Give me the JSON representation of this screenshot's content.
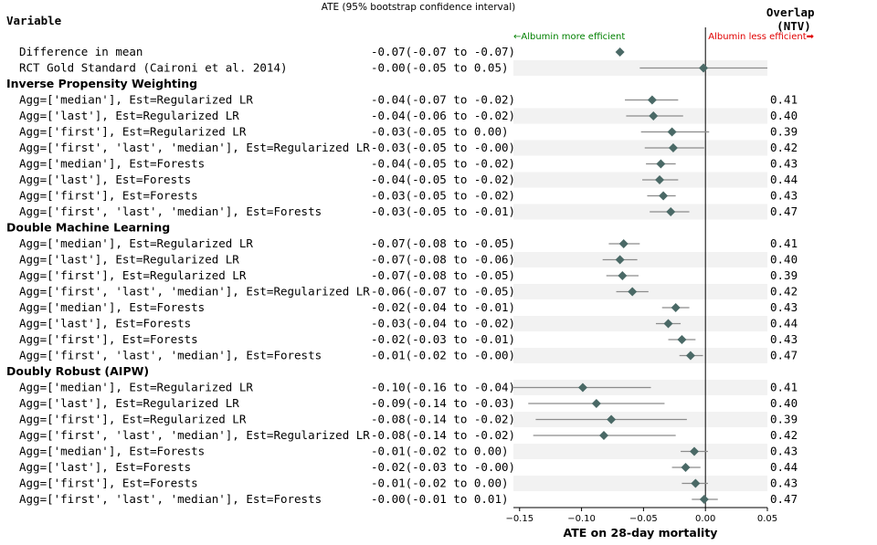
{
  "chart_data": {
    "type": "forest",
    "title": "ATE (95% bootstrap confidence interval)",
    "xlabel": "ATE on 28-day mortality",
    "xlim": [
      -0.155,
      0.05
    ],
    "xticks": [
      "−0.15",
      "−0.10",
      "−0.05",
      "0.00",
      "0.05"
    ],
    "xtick_values": [
      -0.15,
      -0.1,
      -0.05,
      0.0,
      0.05
    ],
    "reference_line": 0.0,
    "headers": {
      "variable": "Variable",
      "overlap": "Overlap\n(NTV)"
    },
    "annotations": {
      "left": "←Albumin more efficient",
      "right": "Albumin less efficient➡",
      "left_color": "#008000",
      "right_color": "#e00000"
    },
    "marker_color": "#4a6966",
    "rows": [
      {
        "kind": "row",
        "label": "Difference in mean",
        "ci_text": "-0.07(-0.07 to -0.07)",
        "ate": -0.069,
        "lo": -0.069,
        "hi": -0.069,
        "overlap": "",
        "shade": false
      },
      {
        "kind": "row",
        "label": "RCT Gold Standard (Caironi et al. 2014)",
        "ci_text": "-0.00(-0.05 to  0.05)",
        "ate": -0.0016,
        "lo": -0.053,
        "hi": 0.05,
        "overlap": "",
        "shade": true
      },
      {
        "kind": "section",
        "label": "Inverse Propensity Weighting"
      },
      {
        "kind": "row",
        "label": "Agg=['median'], Est=Regularized LR",
        "ci_text": "-0.04(-0.07 to -0.02)",
        "ate": -0.043,
        "lo": -0.065,
        "hi": -0.022,
        "overlap": "0.41",
        "shade": false
      },
      {
        "kind": "row",
        "label": "Agg=['last'], Est=Regularized LR",
        "ci_text": "-0.04(-0.06 to -0.02)",
        "ate": -0.042,
        "lo": -0.064,
        "hi": -0.018,
        "overlap": "0.40",
        "shade": true
      },
      {
        "kind": "row",
        "label": "Agg=['first'], Est=Regularized LR",
        "ci_text": "-0.03(-0.05 to  0.00)",
        "ate": -0.027,
        "lo": -0.052,
        "hi": 0.003,
        "overlap": "0.39",
        "shade": false
      },
      {
        "kind": "row",
        "label": "Agg=['first', 'last', 'median'], Est=Regularized LR",
        "ci_text": "-0.03(-0.05 to -0.00)",
        "ate": -0.026,
        "lo": -0.049,
        "hi": -0.001,
        "overlap": "0.42",
        "shade": true
      },
      {
        "kind": "row",
        "label": "Agg=['median'], Est=Forests",
        "ci_text": "-0.04(-0.05 to -0.02)",
        "ate": -0.036,
        "lo": -0.048,
        "hi": -0.024,
        "overlap": "0.43",
        "shade": false
      },
      {
        "kind": "row",
        "label": "Agg=['last'], Est=Forests",
        "ci_text": "-0.04(-0.05 to -0.02)",
        "ate": -0.037,
        "lo": -0.051,
        "hi": -0.022,
        "overlap": "0.44",
        "shade": true
      },
      {
        "kind": "row",
        "label": "Agg=['first'], Est=Forests",
        "ci_text": "-0.03(-0.05 to -0.02)",
        "ate": -0.034,
        "lo": -0.047,
        "hi": -0.024,
        "overlap": "0.43",
        "shade": false
      },
      {
        "kind": "row",
        "label": "Agg=['first', 'last', 'median'], Est=Forests",
        "ci_text": "-0.03(-0.05 to -0.01)",
        "ate": -0.028,
        "lo": -0.045,
        "hi": -0.013,
        "overlap": "0.47",
        "shade": true
      },
      {
        "kind": "section",
        "label": "Double Machine Learning"
      },
      {
        "kind": "row",
        "label": "Agg=['median'], Est=Regularized LR",
        "ci_text": "-0.07(-0.08 to -0.05)",
        "ate": -0.066,
        "lo": -0.078,
        "hi": -0.053,
        "overlap": "0.41",
        "shade": false
      },
      {
        "kind": "row",
        "label": "Agg=['last'], Est=Regularized LR",
        "ci_text": "-0.07(-0.08 to -0.06)",
        "ate": -0.069,
        "lo": -0.083,
        "hi": -0.055,
        "overlap": "0.40",
        "shade": true
      },
      {
        "kind": "row",
        "label": "Agg=['first'], Est=Regularized LR",
        "ci_text": "-0.07(-0.08 to -0.05)",
        "ate": -0.067,
        "lo": -0.08,
        "hi": -0.054,
        "overlap": "0.39",
        "shade": false
      },
      {
        "kind": "row",
        "label": "Agg=['first', 'last', 'median'], Est=Regularized LR",
        "ci_text": "-0.06(-0.07 to -0.05)",
        "ate": -0.059,
        "lo": -0.072,
        "hi": -0.046,
        "overlap": "0.42",
        "shade": true
      },
      {
        "kind": "row",
        "label": "Agg=['median'], Est=Forests",
        "ci_text": "-0.02(-0.04 to -0.01)",
        "ate": -0.024,
        "lo": -0.035,
        "hi": -0.013,
        "overlap": "0.43",
        "shade": false
      },
      {
        "kind": "row",
        "label": "Agg=['last'], Est=Forests",
        "ci_text": "-0.03(-0.04 to -0.02)",
        "ate": -0.03,
        "lo": -0.04,
        "hi": -0.02,
        "overlap": "0.44",
        "shade": true
      },
      {
        "kind": "row",
        "label": "Agg=['first'], Est=Forests",
        "ci_text": "-0.02(-0.03 to -0.01)",
        "ate": -0.019,
        "lo": -0.03,
        "hi": -0.008,
        "overlap": "0.43",
        "shade": false
      },
      {
        "kind": "row",
        "label": "Agg=['first', 'last', 'median'], Est=Forests",
        "ci_text": "-0.01(-0.02 to -0.00)",
        "ate": -0.012,
        "lo": -0.021,
        "hi": -0.002,
        "overlap": "0.47",
        "shade": true
      },
      {
        "kind": "section",
        "label": "Doubly Robust (AIPW)"
      },
      {
        "kind": "row",
        "label": "Agg=['median'], Est=Regularized LR",
        "ci_text": "-0.10(-0.16 to -0.04)",
        "ate": -0.099,
        "lo": -0.155,
        "hi": -0.044,
        "overlap": "0.41",
        "shade": true
      },
      {
        "kind": "row",
        "label": "Agg=['last'], Est=Regularized LR",
        "ci_text": "-0.09(-0.14 to -0.03)",
        "ate": -0.088,
        "lo": -0.143,
        "hi": -0.033,
        "overlap": "0.40",
        "shade": false
      },
      {
        "kind": "row",
        "label": "Agg=['first'], Est=Regularized LR",
        "ci_text": "-0.08(-0.14 to -0.02)",
        "ate": -0.076,
        "lo": -0.137,
        "hi": -0.015,
        "overlap": "0.39",
        "shade": true
      },
      {
        "kind": "row",
        "label": "Agg=['first', 'last', 'median'], Est=Regularized LR",
        "ci_text": "-0.08(-0.14 to -0.02)",
        "ate": -0.082,
        "lo": -0.139,
        "hi": -0.024,
        "overlap": "0.42",
        "shade": false
      },
      {
        "kind": "row",
        "label": "Agg=['median'], Est=Forests",
        "ci_text": "-0.01(-0.02 to  0.00)",
        "ate": -0.009,
        "lo": -0.02,
        "hi": 0.002,
        "overlap": "0.43",
        "shade": true
      },
      {
        "kind": "row",
        "label": "Agg=['last'], Est=Forests",
        "ci_text": "-0.02(-0.03 to -0.00)",
        "ate": -0.016,
        "lo": -0.027,
        "hi": -0.004,
        "overlap": "0.44",
        "shade": false
      },
      {
        "kind": "row",
        "label": "Agg=['first'], Est=Forests",
        "ci_text": "-0.01(-0.02 to  0.00)",
        "ate": -0.008,
        "lo": -0.019,
        "hi": 0.002,
        "overlap": "0.43",
        "shade": true
      },
      {
        "kind": "row",
        "label": "Agg=['first', 'last', 'median'], Est=Forests",
        "ci_text": "-0.00(-0.01 to  0.01)",
        "ate": -0.001,
        "lo": -0.011,
        "hi": 0.01,
        "overlap": "0.47",
        "shade": false
      }
    ]
  }
}
